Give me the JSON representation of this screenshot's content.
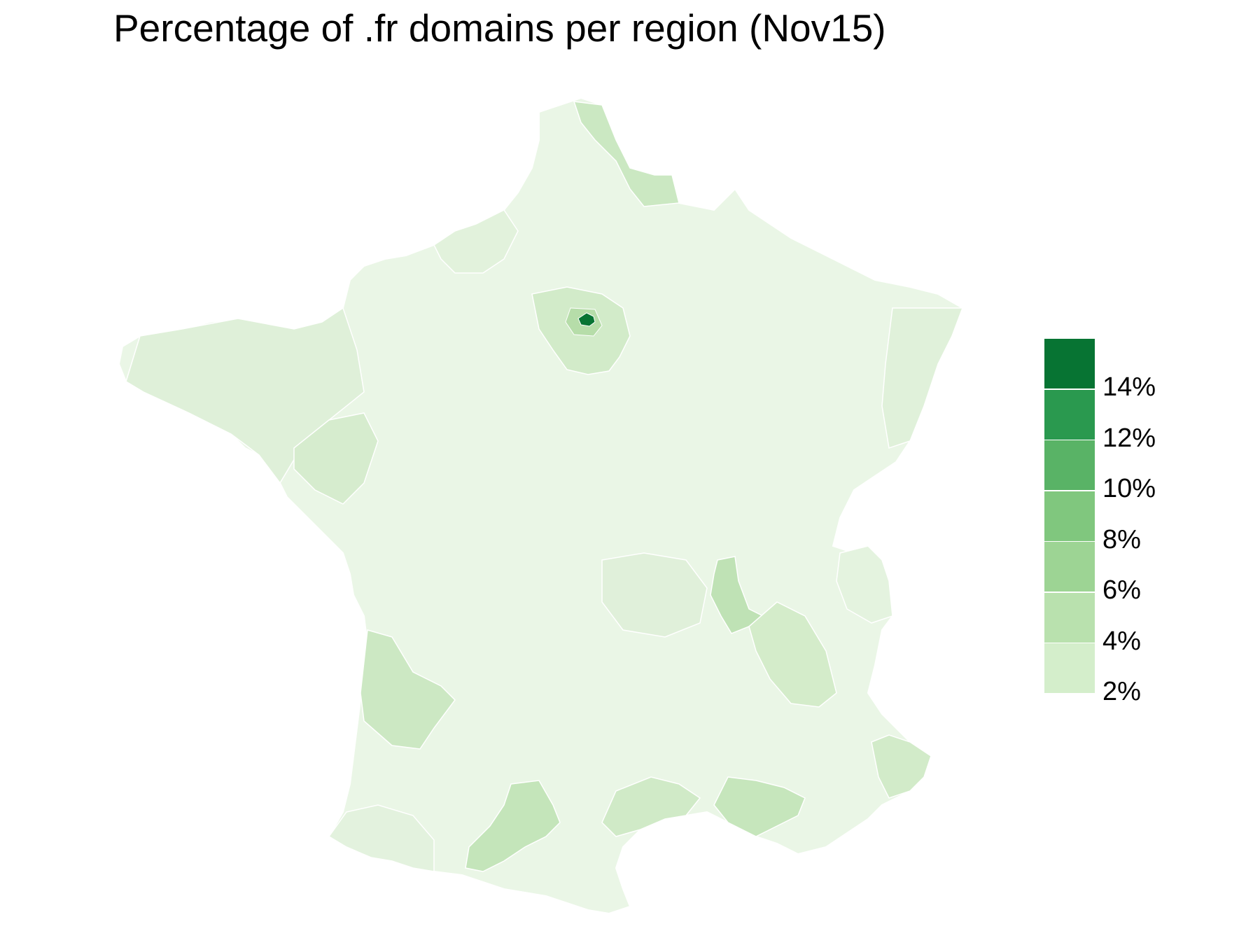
{
  "title": "Percentage of .fr domains per region (Nov15)",
  "colors": {
    "background": "#ffffff",
    "region_border": "#ffffff",
    "base_fill": "#eaf6e6",
    "low_fill": "#dcefd6",
    "mid_fill": "#c9e7c0",
    "paris_ring": "#b6dda9",
    "paris": "#077433"
  },
  "legend": {
    "items": [
      {
        "label": "14%",
        "color": "#077433"
      },
      {
        "label": "12%",
        "color": "#2a994f"
      },
      {
        "label": "10%",
        "color": "#59b366"
      },
      {
        "label": "8%",
        "color": "#80c77e"
      },
      {
        "label": "6%",
        "color": "#9dd494"
      },
      {
        "label": "4%",
        "color": "#b9e1ae"
      },
      {
        "label": "2%",
        "color": "#d4eecb"
      }
    ]
  },
  "chart_data": {
    "type": "choropleth",
    "title": "Percentage of .fr domains per region (Nov15)",
    "region": "France (metropolitan departments)",
    "legend_scale": [
      "2%",
      "4%",
      "6%",
      "8%",
      "10%",
      "12%",
      "14%"
    ],
    "highlighted_areas": [
      {
        "area": "Paris",
        "approx_percent": 14
      },
      {
        "area": "Île-de-France surroundings",
        "approx_percent": 4
      },
      {
        "area": "Rhône (Lyon)",
        "approx_percent": 4
      },
      {
        "area": "Nord",
        "approx_percent": 3
      },
      {
        "area": "Gironde",
        "approx_percent": 3
      },
      {
        "area": "Haute-Garonne",
        "approx_percent": 3
      },
      {
        "area": "Bouches-du-Rhône",
        "approx_percent": 3
      },
      {
        "area": "Hérault",
        "approx_percent": 3
      },
      {
        "area": "Alpes-Maritimes",
        "approx_percent": 3
      }
    ]
  }
}
